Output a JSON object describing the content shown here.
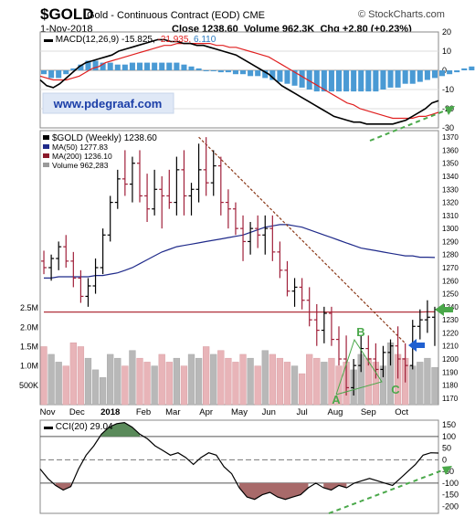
{
  "header": {
    "symbol": "$GOLD",
    "name": "Gold - Continuous Contract (EOD) CME",
    "brand": "© StockCharts.com",
    "date": "1-Nov-2018",
    "close": "Close 1238.60",
    "volume": "Volume 962.3K",
    "chg": "Chg +2.80 (+0.23%)"
  },
  "watermark": "www.pdegraaf.com",
  "chart_data": [
    {
      "type": "line",
      "title": "MACD(12,26,9) -15.825, -21.935, 6.110",
      "legend": {
        "label": "MACD(12,26,9)",
        "macd": "-15.825",
        "signal": "-21.935",
        "hist": "6.110"
      },
      "ylim": [
        -30,
        20
      ],
      "yticks": [
        "20",
        "10",
        "0",
        "-10",
        "-20",
        "-30"
      ],
      "macd_line": [
        -5,
        -8,
        -9,
        -7,
        -4,
        -1,
        2,
        4,
        5,
        6,
        7,
        8,
        10,
        11,
        12,
        13,
        14,
        15,
        16,
        16,
        15,
        15,
        14,
        14,
        13,
        13,
        12,
        11,
        10,
        9,
        8,
        6,
        4,
        2,
        0,
        -2,
        -5,
        -8,
        -10,
        -12,
        -14,
        -16,
        -18,
        -20,
        -22,
        -24,
        -25,
        -26,
        -27,
        -27,
        -28,
        -28,
        -28,
        -28,
        -28,
        -27,
        -26,
        -24,
        -22,
        -20,
        -17,
        -15.8
      ],
      "signal_line": [
        -3,
        -4,
        -5,
        -5,
        -5,
        -4,
        -3,
        -1,
        1,
        2,
        4,
        5,
        6,
        7,
        8,
        9,
        10,
        11,
        12,
        13,
        13,
        14,
        14,
        14,
        14,
        14,
        14,
        13,
        13,
        12,
        12,
        11,
        10,
        9,
        8,
        7,
        5,
        3,
        1,
        -1,
        -3,
        -5,
        -7,
        -9,
        -11,
        -13,
        -15,
        -17,
        -18,
        -20,
        -21,
        -22,
        -23,
        -24,
        -25,
        -25,
        -25,
        -25,
        -24,
        -24,
        -23,
        -21.9
      ],
      "histogram": [
        -2,
        -4,
        -4,
        -2,
        1,
        3,
        5,
        5,
        4,
        4,
        3,
        3,
        4,
        4,
        4,
        4,
        4,
        4,
        4,
        3,
        2,
        1,
        0,
        0,
        -1,
        -1,
        -2,
        -2,
        -3,
        -3,
        -4,
        -5,
        -6,
        -7,
        -8,
        -9,
        -10,
        -11,
        -11,
        -11,
        -11,
        -11,
        -11,
        -11,
        -11,
        -11,
        -10,
        -9,
        -9,
        -7,
        -7,
        -6,
        -5,
        -4,
        -3,
        -2,
        -1,
        1,
        2,
        4,
        6,
        6.1
      ],
      "annotation": "dashed green arrow pointing up-right"
    },
    {
      "type": "candlestick",
      "title": "$GOLD (Weekly) 1238.60",
      "legend": [
        {
          "label": "$GOLD (Weekly) 1238.60",
          "color": "#000000"
        },
        {
          "label": "MA(50) 1277.83",
          "color": "#1f2a8a"
        },
        {
          "label": "MA(200) 1236.10",
          "color": "#8b1a2b"
        },
        {
          "label": "Volume 962,283",
          "color": "#9a9a9a"
        }
      ],
      "ylim": [
        1165,
        1375
      ],
      "yticks": [
        "1370",
        "1360",
        "1350",
        "1340",
        "1330",
        "1320",
        "1310",
        "1300",
        "1290",
        "1280",
        "1270",
        "1260",
        "1250",
        "1240",
        "1230",
        "1220",
        "1210",
        "1200",
        "1190",
        "1180",
        "1170"
      ],
      "xlabels": [
        "Nov",
        "Dec",
        "2018",
        "Feb",
        "Mar",
        "Apr",
        "May",
        "Jun",
        "Jul",
        "Aug",
        "Sep",
        "Oct"
      ],
      "xlabel_weeks": [
        0.5,
        4.5,
        9,
        13.5,
        17.5,
        22,
        26.5,
        30.5,
        35,
        39.5,
        44,
        48.5
      ],
      "ohlc": [
        [
          1275,
          1283,
          1265,
          1270
        ],
        [
          1270,
          1280,
          1260,
          1277
        ],
        [
          1277,
          1290,
          1268,
          1286
        ],
        [
          1286,
          1295,
          1270,
          1275
        ],
        [
          1275,
          1282,
          1255,
          1262
        ],
        [
          1262,
          1268,
          1243,
          1248
        ],
        [
          1248,
          1262,
          1240,
          1256
        ],
        [
          1256,
          1277,
          1250,
          1270
        ],
        [
          1270,
          1300,
          1265,
          1295
        ],
        [
          1295,
          1325,
          1290,
          1320
        ],
        [
          1320,
          1345,
          1315,
          1338
        ],
        [
          1338,
          1360,
          1325,
          1334
        ],
        [
          1334,
          1355,
          1320,
          1350
        ],
        [
          1350,
          1360,
          1320,
          1325
        ],
        [
          1325,
          1342,
          1305,
          1315
        ],
        [
          1315,
          1345,
          1310,
          1330
        ],
        [
          1330,
          1340,
          1300,
          1325
        ],
        [
          1325,
          1345,
          1315,
          1320
        ],
        [
          1320,
          1355,
          1310,
          1345
        ],
        [
          1345,
          1360,
          1310,
          1325
        ],
        [
          1325,
          1335,
          1310,
          1330
        ],
        [
          1330,
          1365,
          1320,
          1345
        ],
        [
          1345,
          1370,
          1325,
          1335
        ],
        [
          1335,
          1360,
          1325,
          1348
        ],
        [
          1348,
          1355,
          1310,
          1320
        ],
        [
          1320,
          1330,
          1300,
          1315
        ],
        [
          1315,
          1320,
          1295,
          1300
        ],
        [
          1300,
          1310,
          1275,
          1290
        ],
        [
          1290,
          1305,
          1280,
          1300
        ],
        [
          1300,
          1310,
          1285,
          1295
        ],
        [
          1295,
          1310,
          1280,
          1300
        ],
        [
          1300,
          1310,
          1275,
          1282
        ],
        [
          1282,
          1290,
          1262,
          1268
        ],
        [
          1268,
          1275,
          1248,
          1252
        ],
        [
          1252,
          1262,
          1240,
          1255
        ],
        [
          1255,
          1262,
          1238,
          1245
        ],
        [
          1245,
          1255,
          1225,
          1230
        ],
        [
          1230,
          1242,
          1210,
          1222
        ],
        [
          1222,
          1240,
          1212,
          1235
        ],
        [
          1235,
          1240,
          1210,
          1215
        ],
        [
          1215,
          1225,
          1195,
          1200
        ],
        [
          1200,
          1218,
          1172,
          1178
        ],
        [
          1178,
          1200,
          1172,
          1195
        ],
        [
          1195,
          1218,
          1190,
          1208
        ],
        [
          1208,
          1218,
          1195,
          1200
        ],
        [
          1200,
          1212,
          1185,
          1192
        ],
        [
          1192,
          1210,
          1186,
          1205
        ],
        [
          1205,
          1215,
          1195,
          1210
        ],
        [
          1210,
          1225,
          1185,
          1200
        ],
        [
          1200,
          1212,
          1182,
          1195
        ],
        [
          1195,
          1230,
          1192,
          1225
        ],
        [
          1225,
          1238,
          1215,
          1230
        ],
        [
          1230,
          1245,
          1220,
          1232
        ],
        [
          1232,
          1240,
          1210,
          1238
        ]
      ],
      "ma50": [
        1262,
        1262,
        1263,
        1263,
        1263,
        1263,
        1263,
        1264,
        1264,
        1265,
        1266,
        1268,
        1270,
        1273,
        1276,
        1279,
        1282,
        1284,
        1286,
        1287,
        1288,
        1289,
        1290,
        1291,
        1292,
        1293,
        1294,
        1295,
        1297,
        1299,
        1301,
        1302,
        1303,
        1303,
        1302,
        1301,
        1299,
        1297,
        1295,
        1293,
        1291,
        1289,
        1287,
        1285,
        1284,
        1283,
        1282,
        1281,
        1280,
        1279,
        1279,
        1278,
        1278,
        1277.8
      ],
      "ma200": [
        1236,
        1236,
        1236,
        1236,
        1236,
        1236,
        1236,
        1236,
        1236,
        1236,
        1236,
        1236,
        1236,
        1236,
        1236,
        1236,
        1236,
        1236,
        1236,
        1236,
        1236,
        1236,
        1236,
        1236,
        1236,
        1236,
        1236,
        1236,
        1236,
        1236,
        1236,
        1236,
        1236,
        1236,
        1236,
        1236,
        1236,
        1236,
        1236,
        1236,
        1236,
        1236,
        1236,
        1236,
        1236,
        1236,
        1236,
        1236,
        1236,
        1236,
        1236,
        1236,
        1236.1,
        1236.1
      ],
      "volume_ticks": [
        "2.5M",
        "2.0M",
        "1.5M",
        "1.0M",
        "500K"
      ],
      "volume_m": [
        1.5,
        1.3,
        1.1,
        1.0,
        1.6,
        1.5,
        1.2,
        0.9,
        0.7,
        1.3,
        1.2,
        1.0,
        1.4,
        1.2,
        1.1,
        1.0,
        1.3,
        1.1,
        1.2,
        1.0,
        1.3,
        1.2,
        1.5,
        1.3,
        1.4,
        1.2,
        1.1,
        1.3,
        1.2,
        1.0,
        1.4,
        1.3,
        1.2,
        1.1,
        1.0,
        0.8,
        1.3,
        1.2,
        1.1,
        1.2,
        1.0,
        1.1,
        0.9,
        1.3,
        1.2,
        1.1,
        1.0,
        1.6,
        1.3,
        1.2,
        1.0,
        1.1,
        1.2,
        0.96
      ],
      "annotations": [
        "A",
        "B",
        "C"
      ]
    },
    {
      "type": "line",
      "title": "CCI(20) 29.04",
      "legend": {
        "label": "CCI(20) 29.04"
      },
      "ylim": [
        -230,
        170
      ],
      "yticks": [
        "150",
        "100",
        "50",
        "0",
        "-50",
        "-100",
        "-150",
        "-200"
      ],
      "values": [
        -40,
        -80,
        -110,
        -130,
        -115,
        -40,
        20,
        60,
        110,
        140,
        155,
        160,
        140,
        110,
        90,
        60,
        40,
        20,
        30,
        10,
        -20,
        10,
        30,
        20,
        -30,
        -60,
        -120,
        -160,
        -170,
        -150,
        -140,
        -160,
        -170,
        -160,
        -150,
        -120,
        -100,
        -120,
        -130,
        -110,
        -120,
        -100,
        -90,
        -80,
        -90,
        -100,
        -110,
        -80,
        -50,
        -20,
        20,
        30,
        29
      ],
      "annotation": "dashed green arrow pointing up-right"
    }
  ]
}
